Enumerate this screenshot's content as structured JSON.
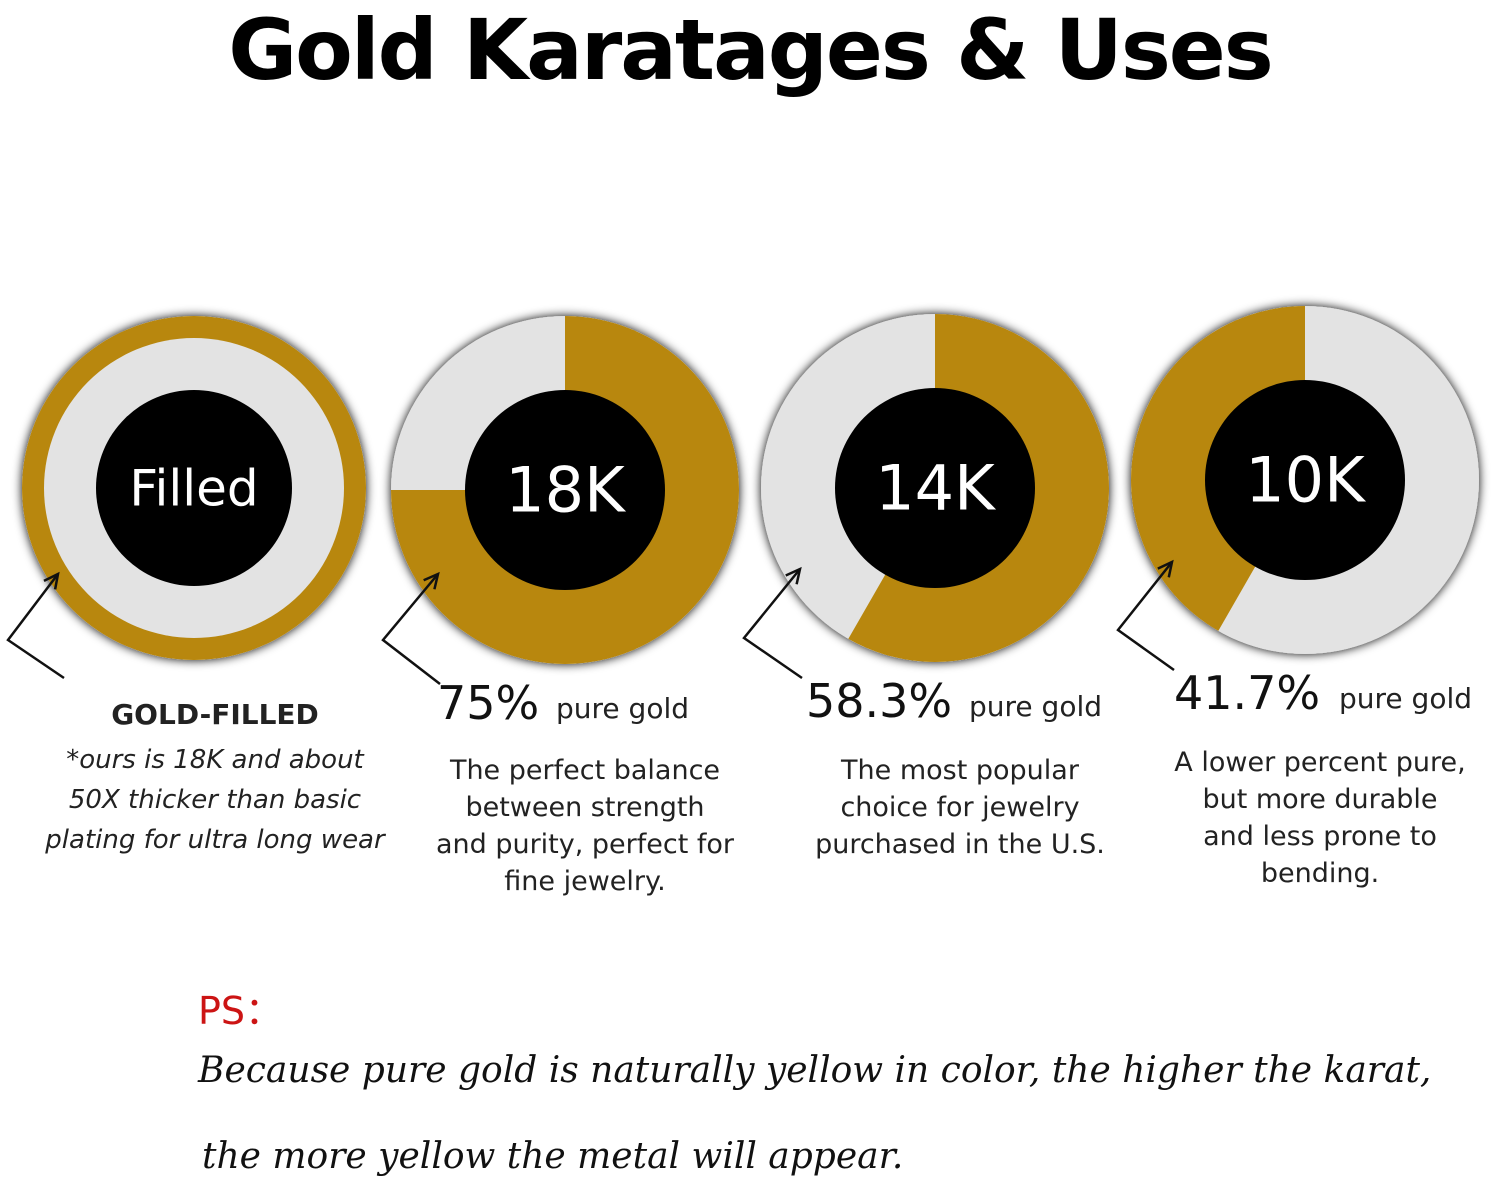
{
  "title": "Gold Karatages & Uses",
  "colors": {
    "gold": "#b8870e",
    "light": "#e3e3e3",
    "center": "#000000",
    "ps": "#cc1414"
  },
  "chart_data": {
    "type": "pie",
    "title": "Gold Karatages & Uses",
    "charts": [
      {
        "label": "Filled",
        "gold_fraction": 1.0,
        "ring_only": true,
        "percent_text": "",
        "percent_label": "",
        "heading": "GOLD-FILLED",
        "description_lines": [
          "*ours is 18K and about",
          "50X thicker than basic",
          "plating for ultra long wear"
        ]
      },
      {
        "label": "18K",
        "gold_fraction": 0.75,
        "ring_only": false,
        "percent_text": "75%",
        "percent_label": "pure gold",
        "description_lines": [
          "The perfect balance",
          "between strength",
          "and purity, perfect for",
          "fine jewelry."
        ]
      },
      {
        "label": "14K",
        "gold_fraction": 0.583,
        "ring_only": false,
        "percent_text": "58.3%",
        "percent_label": "pure gold",
        "description_lines": [
          "The most popular",
          "choice for jewelry",
          "purchased in the U.S."
        ]
      },
      {
        "label": "10K",
        "gold_fraction": 0.417,
        "ring_only": false,
        "percent_text": "41.7%",
        "percent_label": "pure gold",
        "description_lines": [
          "A lower percent pure,",
          "but more durable",
          "and less prone to",
          "bending."
        ]
      }
    ]
  },
  "ps": {
    "label": "PS：",
    "line1": "Because pure gold is naturally yellow in color, the higher the karat,",
    "line2": "the more yellow the metal will appear."
  }
}
